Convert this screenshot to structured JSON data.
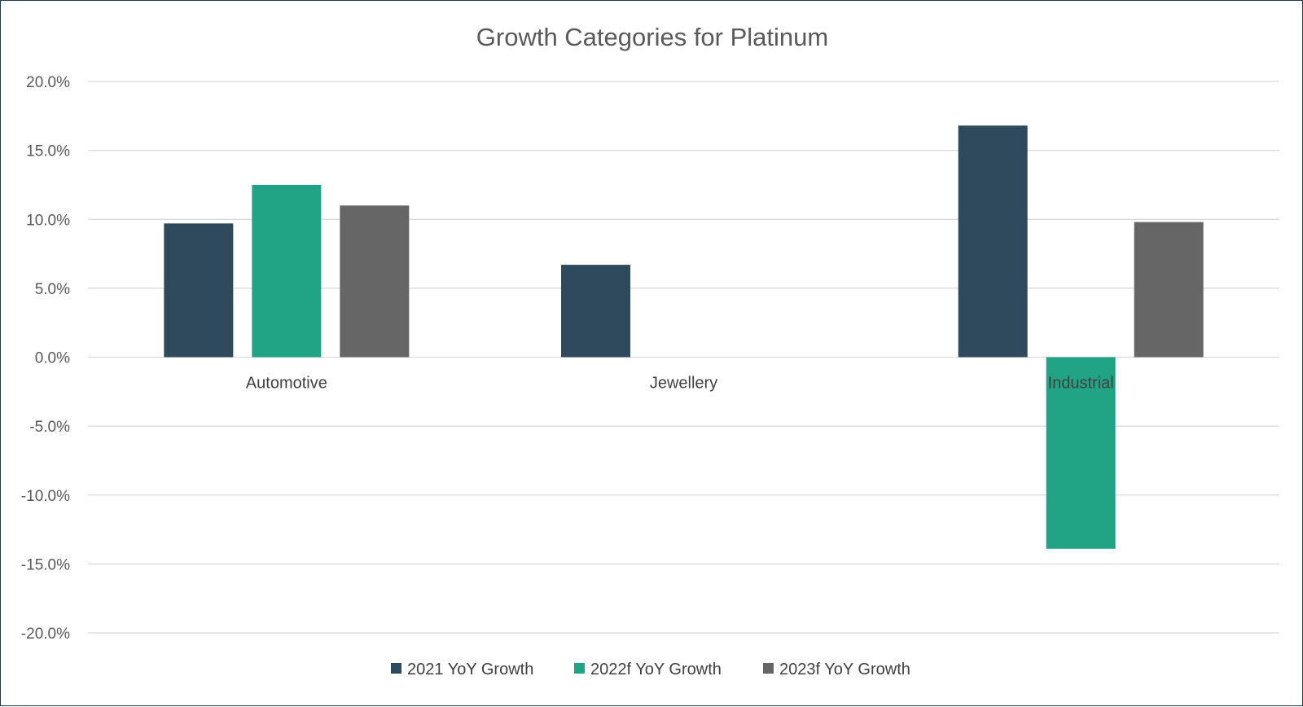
{
  "chart_data": {
    "type": "bar",
    "title": "Growth Categories for Platinum",
    "categories": [
      "Automotive",
      "Jewellery",
      "Industrial"
    ],
    "series": [
      {
        "name": "2021 YoY Growth",
        "color": "#2e4a5c",
        "values": [
          9.7,
          6.7,
          16.8
        ]
      },
      {
        "name": "2022f YoY Growth",
        "color": "#21a386",
        "values": [
          12.5,
          null,
          -13.9
        ]
      },
      {
        "name": "2023f YoY Growth",
        "color": "#666666",
        "values": [
          11.0,
          null,
          9.8
        ]
      }
    ],
    "ylim": [
      -20,
      20
    ],
    "yticks": [
      20,
      15,
      10,
      5,
      0,
      -5,
      -10,
      -15,
      -20
    ],
    "ytick_labels": [
      "20.0%",
      "15.0%",
      "10.0%",
      "5.0%",
      "0.0%",
      "-5.0%",
      "-10.0%",
      "-15.0%",
      "-20.0%"
    ],
    "grid": true,
    "legend_position": "bottom"
  }
}
